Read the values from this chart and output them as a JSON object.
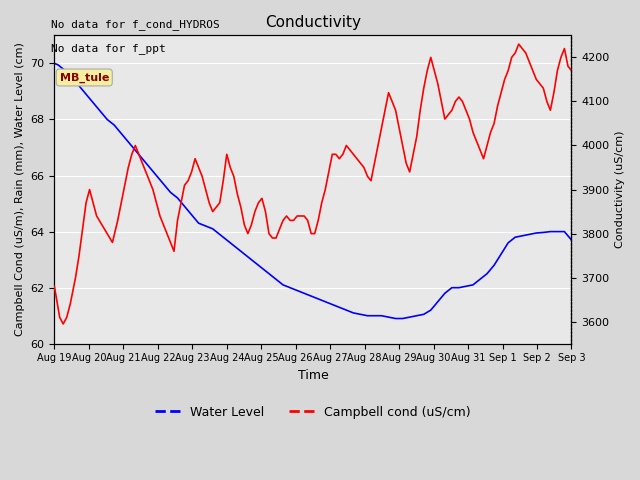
{
  "title": "Conductivity",
  "xlabel": "Time",
  "ylabel_left": "Campbell Cond (uS/m), Rain (mm), Water Level (cm)",
  "ylabel_right": "Conductivity (uS/cm)",
  "ylim_left": [
    60.0,
    71.0
  ],
  "ylim_right": [
    3550,
    4250
  ],
  "note1": "No data for f_cond_HYDROS",
  "note2": "No data for f_ppt",
  "legend_label_blue": "Water Level",
  "legend_label_red": "Campbell cond (uS/cm)",
  "mb_tule_label": "MB_tule",
  "bg_color": "#e8e8e8",
  "plot_bg_color": "#f0f0f0",
  "xtick_labels": [
    "Aug 19",
    "Aug 20",
    "Aug 21",
    "Aug 22",
    "Aug 23",
    "Aug 24",
    "Aug 25",
    "Aug 26",
    "Aug 27",
    "Aug 28",
    "Aug 29",
    "Aug 30",
    "Aug 31",
    "Sep 1",
    "Sep 2",
    "Sep 3"
  ],
  "water_level_x": [
    0,
    0.1,
    0.2,
    0.35,
    0.5,
    0.7,
    0.9,
    1.1,
    1.3,
    1.5,
    1.7,
    1.9,
    2.1,
    2.3,
    2.5,
    2.7,
    2.9,
    3.1,
    3.3,
    3.5,
    3.7,
    3.9,
    4.1,
    4.3,
    4.5,
    4.7,
    4.9,
    5.1,
    5.3,
    5.5,
    5.7,
    5.9,
    6.1,
    6.3,
    6.5,
    6.7,
    6.9,
    7.1,
    7.3,
    7.5,
    7.7,
    7.9,
    8.1,
    8.3,
    8.5,
    8.7,
    8.9,
    9.1,
    9.3,
    9.5,
    9.7,
    9.9,
    10.1,
    10.3,
    10.5,
    10.7,
    10.9,
    11.1,
    11.3,
    11.5,
    11.7,
    11.9,
    12.1,
    12.3,
    12.5,
    12.7,
    12.9,
    13.1,
    13.3,
    13.5,
    13.7,
    13.9,
    14.1,
    14.3,
    14.5,
    14.7
  ],
  "water_level_y": [
    70.0,
    69.95,
    69.85,
    69.7,
    69.5,
    69.2,
    68.9,
    68.6,
    68.3,
    68.0,
    67.8,
    67.5,
    67.2,
    66.9,
    66.6,
    66.3,
    66.0,
    65.7,
    65.4,
    65.2,
    64.9,
    64.6,
    64.3,
    64.2,
    64.1,
    63.9,
    63.7,
    63.5,
    63.3,
    63.1,
    62.9,
    62.7,
    62.5,
    62.3,
    62.1,
    62.0,
    61.9,
    61.8,
    61.7,
    61.6,
    61.5,
    61.4,
    61.3,
    61.2,
    61.1,
    61.05,
    61.0,
    61.0,
    61.0,
    60.95,
    60.9,
    60.9,
    60.95,
    61.0,
    61.05,
    61.2,
    61.5,
    61.8,
    62.0,
    62.0,
    62.05,
    62.1,
    62.3,
    62.5,
    62.8,
    63.2,
    63.6,
    63.8,
    63.85,
    63.9,
    63.95,
    63.97,
    64.0,
    64.0,
    64.0,
    63.7
  ],
  "campbell_x": [
    0,
    0.15,
    0.25,
    0.35,
    0.45,
    0.6,
    0.7,
    0.8,
    0.9,
    1.0,
    1.1,
    1.2,
    1.35,
    1.5,
    1.65,
    1.8,
    1.9,
    2.0,
    2.1,
    2.2,
    2.3,
    2.4,
    2.5,
    2.6,
    2.7,
    2.8,
    2.9,
    3.0,
    3.1,
    3.2,
    3.3,
    3.4,
    3.5,
    3.6,
    3.7,
    3.8,
    3.9,
    4.0,
    4.1,
    4.2,
    4.3,
    4.4,
    4.5,
    4.6,
    4.7,
    4.8,
    4.9,
    5.0,
    5.1,
    5.2,
    5.3,
    5.4,
    5.5,
    5.6,
    5.7,
    5.8,
    5.9,
    6.0,
    6.1,
    6.2,
    6.3,
    6.4,
    6.5,
    6.6,
    6.7,
    6.8,
    6.9,
    7.0,
    7.1,
    7.2,
    7.3,
    7.4,
    7.5,
    7.6,
    7.7,
    7.8,
    7.9,
    8.0,
    8.1,
    8.2,
    8.3,
    8.4,
    8.5,
    8.6,
    8.7,
    8.8,
    8.9,
    9.0,
    9.1,
    9.2,
    9.3,
    9.4,
    9.5,
    9.6,
    9.7,
    9.8,
    9.9,
    10.0,
    10.1,
    10.2,
    10.3,
    10.4,
    10.5,
    10.6,
    10.7,
    10.8,
    10.9,
    11.0,
    11.1,
    11.2,
    11.3,
    11.4,
    11.5,
    11.6,
    11.7,
    11.8,
    11.9,
    12.0,
    12.1,
    12.2,
    12.3,
    12.4,
    12.5,
    12.6,
    12.7,
    12.8,
    12.9,
    13.0,
    13.1,
    13.2,
    13.3,
    13.4,
    13.5,
    13.6,
    13.7,
    13.8,
    13.9,
    14.0,
    14.1,
    14.2,
    14.3,
    14.4,
    14.5,
    14.6,
    14.7
  ],
  "campbell_y": [
    3680,
    3610,
    3595,
    3610,
    3640,
    3700,
    3750,
    3810,
    3870,
    3900,
    3870,
    3840,
    3820,
    3800,
    3780,
    3830,
    3870,
    3910,
    3950,
    3980,
    4000,
    3980,
    3960,
    3940,
    3920,
    3900,
    3870,
    3840,
    3820,
    3800,
    3780,
    3760,
    3830,
    3870,
    3910,
    3920,
    3940,
    3970,
    3950,
    3930,
    3900,
    3870,
    3850,
    3860,
    3870,
    3920,
    3980,
    3950,
    3930,
    3890,
    3860,
    3820,
    3800,
    3820,
    3850,
    3870,
    3880,
    3850,
    3800,
    3790,
    3790,
    3810,
    3830,
    3840,
    3830,
    3830,
    3840,
    3840,
    3840,
    3830,
    3800,
    3800,
    3830,
    3870,
    3900,
    3940,
    3980,
    3980,
    3970,
    3980,
    4000,
    3990,
    3980,
    3970,
    3960,
    3950,
    3930,
    3920,
    3960,
    4000,
    4040,
    4080,
    4120,
    4100,
    4080,
    4040,
    4000,
    3960,
    3940,
    3980,
    4020,
    4080,
    4130,
    4170,
    4200,
    4170,
    4140,
    4100,
    4060,
    4070,
    4080,
    4100,
    4110,
    4100,
    4080,
    4060,
    4030,
    4010,
    3990,
    3970,
    4000,
    4030,
    4050,
    4090,
    4120,
    4150,
    4170,
    4200,
    4210,
    4230,
    4220,
    4210,
    4190,
    4170,
    4150,
    4140,
    4130,
    4100,
    4080,
    4120,
    4170,
    4200,
    4220,
    4180,
    4170
  ]
}
